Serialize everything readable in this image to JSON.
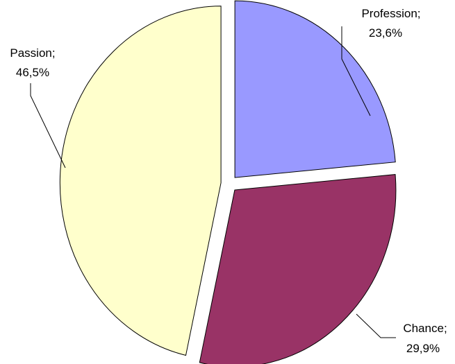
{
  "chart_data": {
    "type": "pie",
    "title": "",
    "exploded": true,
    "slices": [
      {
        "label": "Profession",
        "value": 23.6,
        "display": "23,6%",
        "color": "#9999ff"
      },
      {
        "label": "Chance",
        "value": 29.9,
        "display": "29,9%",
        "color": "#993366"
      },
      {
        "label": "Passion",
        "value": 46.5,
        "display": "46,5%",
        "color": "#ffffcc"
      }
    ]
  }
}
